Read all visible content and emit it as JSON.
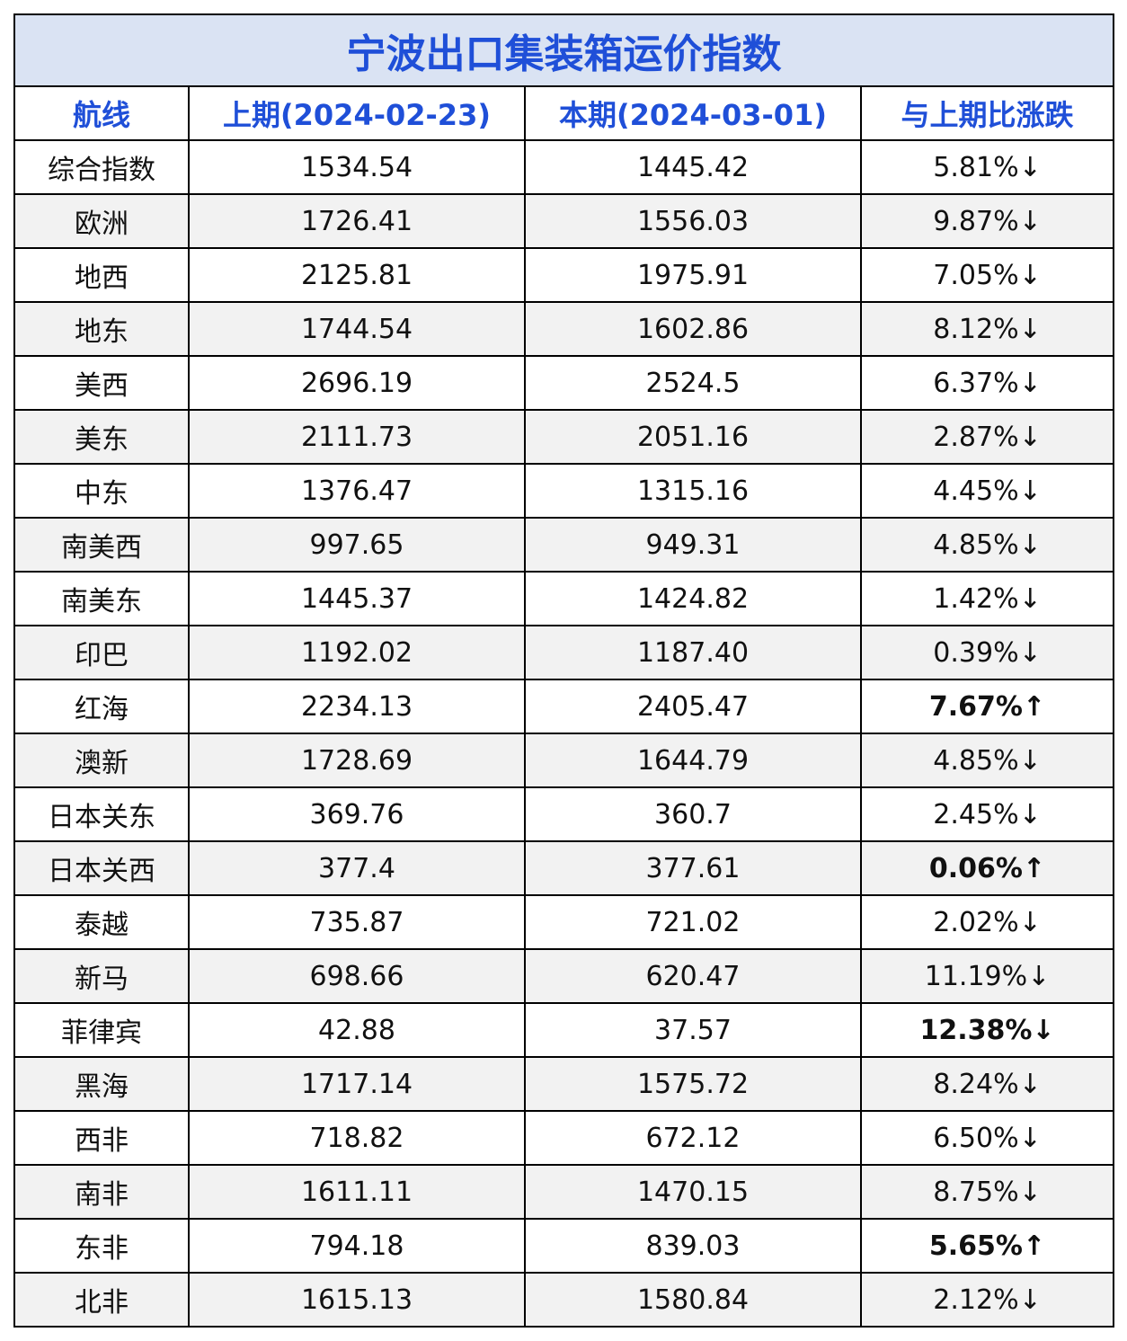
{
  "title": "宁波出口集装箱运价指数",
  "headers": [
    "航线",
    "上期(2024-02-23)",
    "本期(2024-03-01)",
    "与上期比涨跌"
  ],
  "rows": [
    {
      "route": "综合指数",
      "prev": "1534.54",
      "curr": "1445.42",
      "change": "5.81%↓",
      "trend": "down"
    },
    {
      "route": "欧洲",
      "prev": "1726.41",
      "curr": "1556.03",
      "change": "9.87%↓",
      "trend": "down"
    },
    {
      "route": "地西",
      "prev": "2125.81",
      "curr": "1975.91",
      "change": "7.05%↓",
      "trend": "down"
    },
    {
      "route": "地东",
      "prev": "1744.54",
      "curr": "1602.86",
      "change": "8.12%↓",
      "trend": "down"
    },
    {
      "route": "美西",
      "prev": "2696.19",
      "curr": "2524.5",
      "change": "6.37%↓",
      "trend": "down"
    },
    {
      "route": "美东",
      "prev": "2111.73",
      "curr": "2051.16",
      "change": "2.87%↓",
      "trend": "down"
    },
    {
      "route": "中东",
      "prev": "1376.47",
      "curr": "1315.16",
      "change": "4.45%↓",
      "trend": "down"
    },
    {
      "route": "南美西",
      "prev": "997.65",
      "curr": "949.31",
      "change": "4.85%↓",
      "trend": "down"
    },
    {
      "route": "南美东",
      "prev": "1445.37",
      "curr": "1424.82",
      "change": "1.42%↓",
      "trend": "down"
    },
    {
      "route": "印巴",
      "prev": "1192.02",
      "curr": "1187.40",
      "change": "0.39%↓",
      "trend": "down"
    },
    {
      "route": "红海",
      "prev": "2234.13",
      "curr": "2405.47",
      "change": "7.67%↑",
      "trend": "up"
    },
    {
      "route": "澳新",
      "prev": "1728.69",
      "curr": "1644.79",
      "change": "4.85%↓",
      "trend": "down"
    },
    {
      "route": "日本关东",
      "prev": "369.76",
      "curr": "360.7",
      "change": "2.45%↓",
      "trend": "down"
    },
    {
      "route": "日本关西",
      "prev": "377.4",
      "curr": "377.61",
      "change": "0.06%↑",
      "trend": "up"
    },
    {
      "route": "泰越",
      "prev": "735.87",
      "curr": "721.02",
      "change": "2.02%↓",
      "trend": "down"
    },
    {
      "route": "新马",
      "prev": "698.66",
      "curr": "620.47",
      "change": "11.19%↓",
      "trend": "down"
    },
    {
      "route": "菲律宾",
      "prev": "42.88",
      "curr": "37.57",
      "change": "12.38%↓",
      "trend": "down-strong"
    },
    {
      "route": "黑海",
      "prev": "1717.14",
      "curr": "1575.72",
      "change": "8.24%↓",
      "trend": "down"
    },
    {
      "route": "西非",
      "prev": "718.82",
      "curr": "672.12",
      "change": "6.50%↓",
      "trend": "down"
    },
    {
      "route": "南非",
      "prev": "1611.11",
      "curr": "1470.15",
      "change": "8.75%↓",
      "trend": "down"
    },
    {
      "route": "东非",
      "prev": "794.18",
      "curr": "839.03",
      "change": "5.65%↑",
      "trend": "up"
    },
    {
      "route": "北非",
      "prev": "1615.13",
      "curr": "1580.84",
      "change": "2.12%↓",
      "trend": "down"
    }
  ],
  "colors": {
    "title_bg": "#dae3f3",
    "header_text": "#1f4fd8",
    "up": "#ff0000",
    "down_strong": "#70ad47"
  }
}
